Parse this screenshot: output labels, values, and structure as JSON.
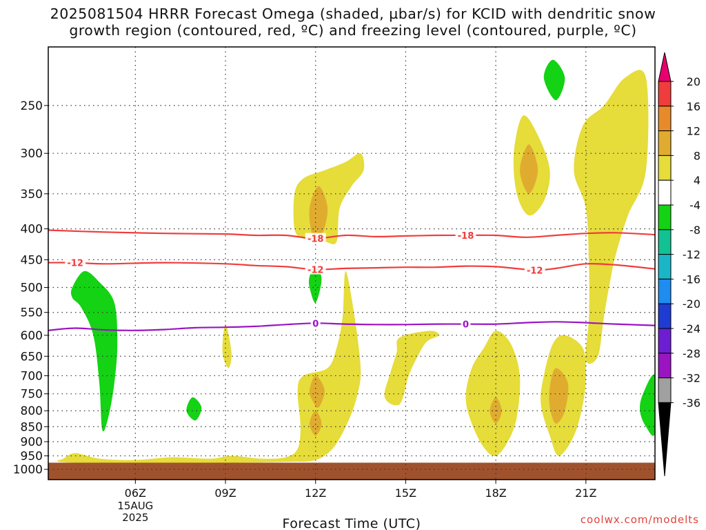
{
  "title_line1": "2025081504 HRRR Forecast Omega (shaded, µbar/s) for KCID with dendritic snow",
  "title_line2": "growth region (contoured, red, ºC) and freezing level (contoured, purple, ºC)",
  "credit": "coolwx.com/modelts",
  "chart_data": {
    "type": "heatmap",
    "xlabel": "Forecast Time (UTC)",
    "ylabel": "",
    "x_range_hours": [
      3.1,
      23.3
    ],
    "y_axis": "pressure (log, inverted)",
    "ylim": [
      1040,
      200
    ],
    "x_ticks": [
      {
        "hour": 6,
        "label": "06Z",
        "sub": [
          "15AUG",
          "2025"
        ]
      },
      {
        "hour": 9,
        "label": "09Z",
        "sub": []
      },
      {
        "hour": 12,
        "label": "12Z",
        "sub": []
      },
      {
        "hour": 15,
        "label": "15Z",
        "sub": []
      },
      {
        "hour": 18,
        "label": "18Z",
        "sub": []
      },
      {
        "hour": 21,
        "label": "21Z",
        "sub": []
      }
    ],
    "y_ticks": [
      250,
      300,
      350,
      400,
      450,
      500,
      550,
      600,
      650,
      700,
      750,
      800,
      850,
      900,
      950,
      1000
    ],
    "grid": true,
    "colorbar": {
      "labels": [
        "20",
        "16",
        "12",
        "8",
        "4",
        "-4",
        "-8",
        "-12",
        "-16",
        "-20",
        "-24",
        "-28",
        "-32",
        "-36"
      ],
      "colors": [
        "#e8006e",
        "#f03c3c",
        "#e88a2a",
        "#e0ac30",
        "#e6dc3a",
        "#ffffff",
        "#14d214",
        "#12c292",
        "#1ab6c8",
        "#1e8cf0",
        "#1e3cd2",
        "#6e1ed2",
        "#9a14c2",
        "#a0a0a0",
        "#000000"
      ]
    },
    "omega_regions": [
      {
        "value_class": "4",
        "color": "#e6dc3a",
        "points": [
          [
            3.6,
            960
          ],
          [
            4.0,
            940
          ],
          [
            4.8,
            960
          ],
          [
            6.0,
            965
          ],
          [
            7.2,
            955
          ],
          [
            8.5,
            960
          ],
          [
            9.2,
            950
          ],
          [
            10.2,
            960
          ],
          [
            11.0,
            955
          ],
          [
            11.4,
            925
          ],
          [
            11.5,
            850
          ],
          [
            11.4,
            740
          ],
          [
            11.6,
            700
          ],
          [
            12.4,
            680
          ],
          [
            12.7,
            630
          ],
          [
            12.9,
            560
          ],
          [
            13.0,
            470
          ],
          [
            13.3,
            560
          ],
          [
            13.5,
            680
          ],
          [
            13.4,
            750
          ],
          [
            13.1,
            830
          ],
          [
            12.6,
            920
          ],
          [
            12.0,
            965
          ],
          [
            11.0,
            972
          ],
          [
            9.0,
            975
          ],
          [
            6.0,
            975
          ],
          [
            4.0,
            975
          ],
          [
            3.4,
            970
          ]
        ]
      },
      {
        "value_class": "4",
        "color": "#e6dc3a",
        "points": [
          [
            11.3,
            400
          ],
          [
            11.3,
            350
          ],
          [
            11.6,
            330
          ],
          [
            12.3,
            320
          ],
          [
            13.0,
            310
          ],
          [
            13.5,
            300
          ],
          [
            13.6,
            320
          ],
          [
            13.2,
            340
          ],
          [
            12.8,
            370
          ],
          [
            12.7,
            420
          ],
          [
            12.3,
            420
          ],
          [
            11.6,
            415
          ]
        ]
      },
      {
        "value_class": "4",
        "color": "#e6dc3a",
        "points": [
          [
            9.0,
            575
          ],
          [
            9.2,
            640
          ],
          [
            9.1,
            680
          ],
          [
            8.9,
            640
          ]
        ]
      },
      {
        "value_class": "4",
        "color": "#e6dc3a",
        "points": [
          [
            14.8,
            605
          ],
          [
            15.8,
            590
          ],
          [
            16.1,
            600
          ],
          [
            15.7,
            615
          ],
          [
            15.4,
            650
          ],
          [
            15.1,
            700
          ],
          [
            14.8,
            780
          ],
          [
            14.3,
            760
          ],
          [
            14.5,
            690
          ],
          [
            14.7,
            640
          ]
        ]
      },
      {
        "value_class": "4",
        "color": "#e6dc3a",
        "points": [
          [
            17.2,
            680
          ],
          [
            17.6,
            630
          ],
          [
            18.0,
            590
          ],
          [
            18.5,
            620
          ],
          [
            18.8,
            700
          ],
          [
            18.7,
            820
          ],
          [
            18.4,
            900
          ],
          [
            18.0,
            950
          ],
          [
            17.6,
            920
          ],
          [
            17.2,
            840
          ],
          [
            17.0,
            760
          ]
        ]
      },
      {
        "value_class": "4",
        "color": "#e6dc3a",
        "points": [
          [
            18.6,
            300
          ],
          [
            18.9,
            260
          ],
          [
            19.4,
            280
          ],
          [
            19.8,
            320
          ],
          [
            19.6,
            360
          ],
          [
            19.1,
            380
          ],
          [
            18.7,
            350
          ]
        ]
      },
      {
        "value_class": "4",
        "color": "#e6dc3a",
        "points": [
          [
            19.6,
            700
          ],
          [
            19.9,
            620
          ],
          [
            20.3,
            600
          ],
          [
            20.9,
            630
          ],
          [
            21.0,
            700
          ],
          [
            20.9,
            780
          ],
          [
            20.6,
            880
          ],
          [
            20.1,
            950
          ],
          [
            19.8,
            880
          ],
          [
            19.5,
            780
          ]
        ]
      },
      {
        "value_class": "4",
        "color": "#e6dc3a",
        "points": [
          [
            20.6,
            320
          ],
          [
            20.9,
            270
          ],
          [
            21.6,
            250
          ],
          [
            22.3,
            225
          ],
          [
            23.0,
            225
          ],
          [
            23.0,
            320
          ],
          [
            22.4,
            380
          ],
          [
            22.0,
            440
          ],
          [
            21.8,
            490
          ],
          [
            21.6,
            560
          ],
          [
            21.4,
            650
          ],
          [
            21.0,
            660
          ],
          [
            21.1,
            560
          ],
          [
            21.1,
            460
          ],
          [
            21.0,
            370
          ]
        ]
      },
      {
        "value_class": "8",
        "color": "#e0ac30",
        "points": [
          [
            11.8,
            370
          ],
          [
            12.1,
            340
          ],
          [
            12.4,
            370
          ],
          [
            12.2,
            410
          ],
          [
            11.9,
            410
          ]
        ]
      },
      {
        "value_class": "8",
        "color": "#e0ac30",
        "points": [
          [
            11.8,
            740
          ],
          [
            12.0,
            700
          ],
          [
            12.3,
            740
          ],
          [
            12.1,
            790
          ],
          [
            11.9,
            770
          ]
        ]
      },
      {
        "value_class": "8",
        "color": "#e0ac30",
        "points": [
          [
            11.8,
            840
          ],
          [
            12.0,
            800
          ],
          [
            12.2,
            840
          ],
          [
            12.0,
            880
          ]
        ]
      },
      {
        "value_class": "8",
        "color": "#e0ac30",
        "points": [
          [
            18.8,
            320
          ],
          [
            19.1,
            290
          ],
          [
            19.4,
            320
          ],
          [
            19.1,
            350
          ]
        ]
      },
      {
        "value_class": "8",
        "color": "#e0ac30",
        "points": [
          [
            17.8,
            800
          ],
          [
            18.0,
            760
          ],
          [
            18.2,
            800
          ],
          [
            18.0,
            840
          ]
        ]
      },
      {
        "value_class": "8",
        "color": "#e0ac30",
        "points": [
          [
            19.8,
            730
          ],
          [
            20.0,
            680
          ],
          [
            20.4,
            720
          ],
          [
            20.3,
            800
          ],
          [
            20.0,
            840
          ],
          [
            19.8,
            790
          ]
        ]
      },
      {
        "value_class": "-4",
        "color": "#14d214",
        "points": [
          [
            3.9,
            500
          ],
          [
            4.3,
            470
          ],
          [
            4.8,
            490
          ],
          [
            5.3,
            530
          ],
          [
            5.4,
            620
          ],
          [
            5.3,
            720
          ],
          [
            5.1,
            820
          ],
          [
            4.9,
            860
          ],
          [
            4.8,
            720
          ],
          [
            4.6,
            600
          ],
          [
            4.2,
            540
          ],
          [
            3.9,
            520
          ]
        ]
      },
      {
        "value_class": "-4",
        "color": "#14d214",
        "points": [
          [
            7.7,
            800
          ],
          [
            7.9,
            760
          ],
          [
            8.2,
            790
          ],
          [
            8.0,
            830
          ]
        ]
      },
      {
        "value_class": "-4",
        "color": "#14d214",
        "points": [
          [
            11.8,
            480
          ],
          [
            12.0,
            460
          ],
          [
            12.2,
            485
          ],
          [
            12.0,
            530
          ],
          [
            11.8,
            500
          ]
        ]
      },
      {
        "value_class": "-4",
        "color": "#14d214",
        "points": [
          [
            19.6,
            225
          ],
          [
            19.9,
            210
          ],
          [
            20.3,
            225
          ],
          [
            20.0,
            245
          ]
        ]
      },
      {
        "value_class": "-4",
        "color": "#14d214",
        "points": [
          [
            23.3,
            700
          ],
          [
            22.9,
            750
          ],
          [
            22.8,
            800
          ],
          [
            23.0,
            850
          ],
          [
            23.3,
            870
          ]
        ]
      }
    ],
    "contours": [
      {
        "name": "-18",
        "color": "#f03c3c",
        "labels_at_hours": [
          12.0,
          17.0
        ],
        "points": [
          [
            3.1,
            402
          ],
          [
            5.0,
            405
          ],
          [
            7.0,
            407
          ],
          [
            9.0,
            408
          ],
          [
            10.0,
            410
          ],
          [
            11.0,
            410
          ],
          [
            12.0,
            415
          ],
          [
            13.0,
            410
          ],
          [
            14.0,
            412
          ],
          [
            15.0,
            411
          ],
          [
            16.0,
            410
          ],
          [
            17.0,
            410
          ],
          [
            18.0,
            410
          ],
          [
            19.0,
            413
          ],
          [
            20.0,
            410
          ],
          [
            21.0,
            407
          ],
          [
            22.0,
            406
          ],
          [
            23.3,
            409
          ]
        ]
      },
      {
        "name": "-12",
        "color": "#f03c3c",
        "labels_at_hours": [
          4.0,
          12.0,
          19.3
        ],
        "points": [
          [
            3.1,
            455
          ],
          [
            4.0,
            455
          ],
          [
            5.0,
            457
          ],
          [
            7.0,
            455
          ],
          [
            9.0,
            457
          ],
          [
            10.0,
            460
          ],
          [
            11.0,
            462
          ],
          [
            12.0,
            467
          ],
          [
            13.0,
            465
          ],
          [
            14.0,
            464
          ],
          [
            15.0,
            463
          ],
          [
            16.0,
            463
          ],
          [
            17.0,
            461
          ],
          [
            18.0,
            462
          ],
          [
            19.3,
            468
          ],
          [
            20.0,
            465
          ],
          [
            21.0,
            457
          ],
          [
            22.0,
            459
          ],
          [
            23.3,
            466
          ]
        ]
      },
      {
        "name": "0",
        "color": "#9a14c2",
        "labels_at_hours": [
          12.0,
          17.0
        ],
        "points": [
          [
            3.1,
            589
          ],
          [
            4.0,
            584
          ],
          [
            5.0,
            588
          ],
          [
            6.0,
            589
          ],
          [
            7.0,
            587
          ],
          [
            8.0,
            583
          ],
          [
            9.0,
            582
          ],
          [
            10.0,
            580
          ],
          [
            11.0,
            576
          ],
          [
            12.0,
            573
          ],
          [
            13.0,
            575
          ],
          [
            14.0,
            576
          ],
          [
            15.0,
            576
          ],
          [
            16.0,
            575
          ],
          [
            17.0,
            575
          ],
          [
            18.0,
            575
          ],
          [
            19.0,
            572
          ],
          [
            20.0,
            570
          ],
          [
            21.0,
            572
          ],
          [
            22.0,
            575
          ],
          [
            23.3,
            578
          ]
        ]
      }
    ],
    "surface_band_color": "#a0522d",
    "surface_band_pressure_range": [
      975,
      1040
    ]
  }
}
